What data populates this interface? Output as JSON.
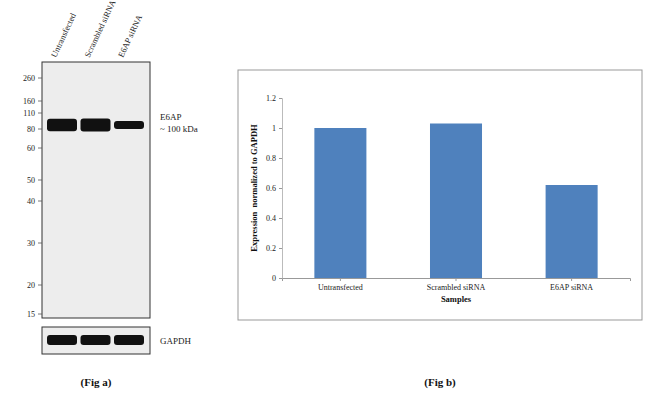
{
  "chart_data": {
    "type": "bar",
    "categories": [
      "Untransfected",
      "Scrambled siRNA",
      "E6AP siRNA"
    ],
    "values": [
      1,
      1.03,
      0.62
    ],
    "color": "#4f81bd",
    "ylim": [
      0,
      1.2
    ],
    "yticks": [
      0,
      0.2,
      0.4,
      0.6,
      0.8,
      1,
      1.2
    ],
    "y_label": "Expression  normalized to GAPDH",
    "x_label": "Samples",
    "caption": "(Fig b)"
  },
  "blot": {
    "type": "western_blot",
    "lanes": [
      "Untransfected",
      "Scrambled siRNA",
      "E6AP siRNA"
    ],
    "markers": [
      260,
      160,
      110,
      80,
      60,
      50,
      40,
      30,
      20,
      15
    ],
    "target_label": "E6AP",
    "target_size": "~ 100 kDa",
    "control_label": "GAPDH",
    "caption": "(Fig a)"
  }
}
